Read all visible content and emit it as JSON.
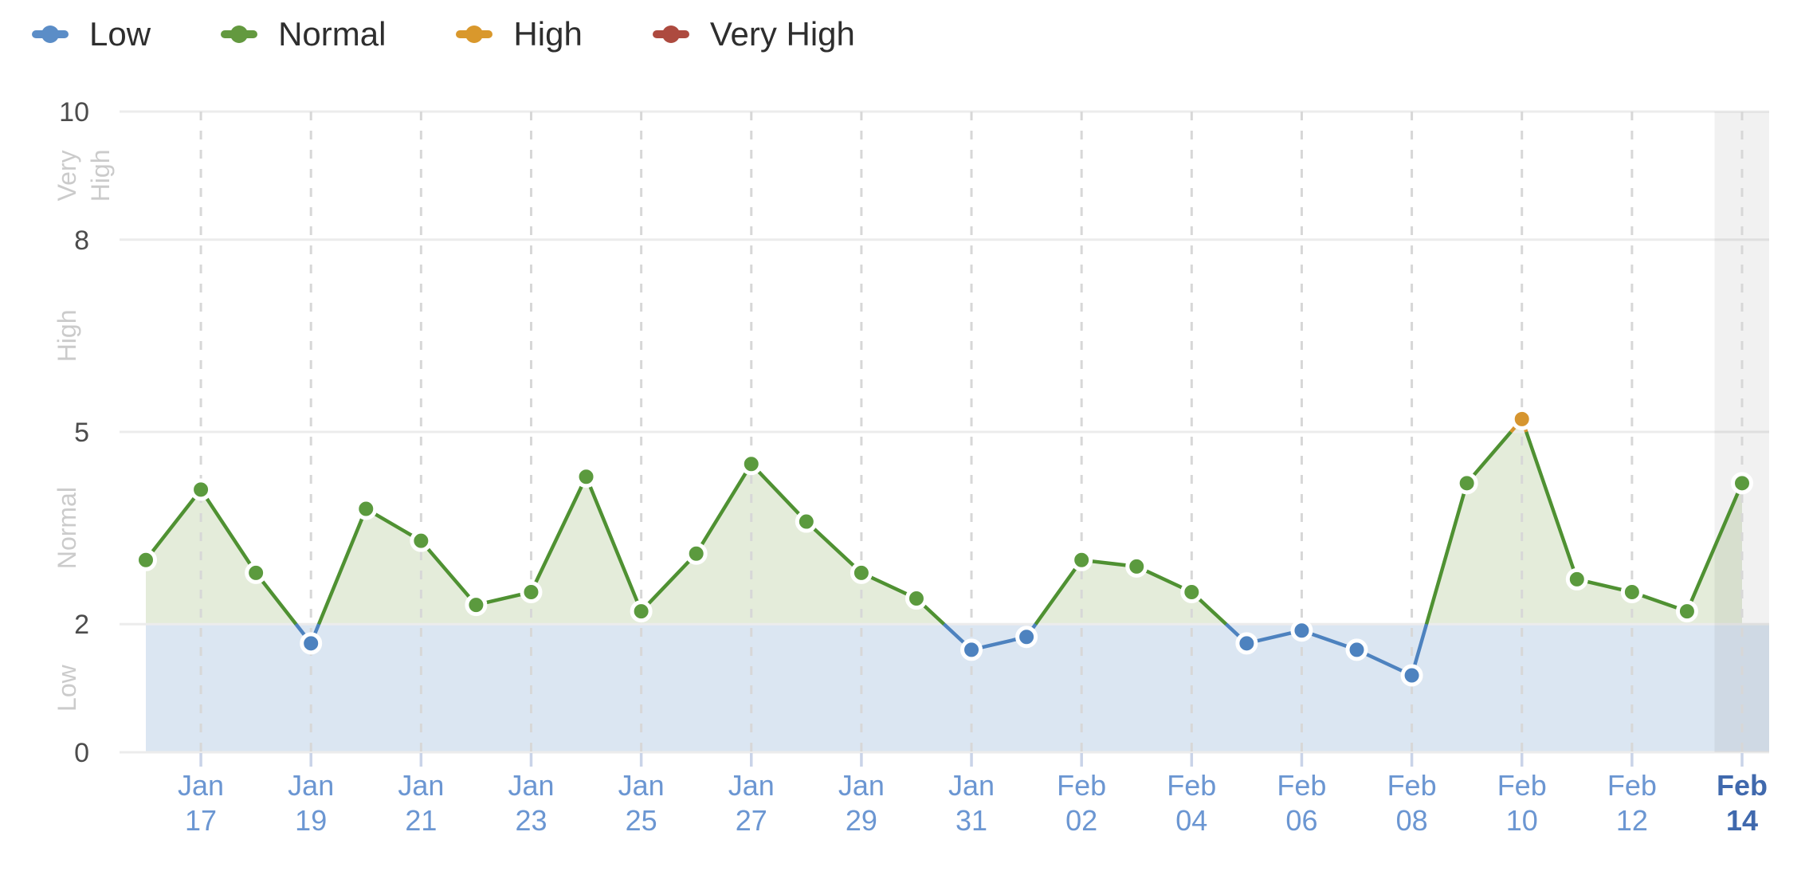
{
  "legend": {
    "items": [
      {
        "label": "Low",
        "color": "#5b8dc7"
      },
      {
        "label": "Normal",
        "color": "#63993f"
      },
      {
        "label": "High",
        "color": "#d9982c"
      },
      {
        "label": "Very High",
        "color": "#ad4a3f"
      }
    ]
  },
  "chart_data": {
    "type": "line",
    "title": "",
    "xlabel": "",
    "ylabel": "",
    "x": [
      "Jan 16",
      "Jan 17",
      "Jan 18",
      "Jan 19",
      "Jan 20",
      "Jan 21",
      "Jan 22",
      "Jan 23",
      "Jan 24",
      "Jan 25",
      "Jan 26",
      "Jan 27",
      "Jan 28",
      "Jan 29",
      "Jan 30",
      "Jan 31",
      "Feb 01",
      "Feb 02",
      "Feb 03",
      "Feb 04",
      "Feb 05",
      "Feb 06",
      "Feb 07",
      "Feb 08",
      "Feb 09",
      "Feb 10",
      "Feb 11",
      "Feb 12",
      "Feb 13",
      "Feb 14"
    ],
    "values": [
      3.0,
      4.1,
      2.8,
      1.7,
      3.8,
      3.3,
      2.3,
      2.5,
      4.3,
      2.2,
      3.1,
      4.5,
      3.6,
      2.8,
      2.4,
      1.6,
      1.8,
      3.0,
      2.9,
      2.5,
      1.7,
      1.9,
      1.6,
      1.2,
      4.2,
      5.2,
      2.7,
      2.5,
      2.2,
      4.2
    ],
    "ylim": [
      0,
      10
    ],
    "yticks": [
      0,
      2,
      5,
      8,
      10
    ],
    "zones": [
      {
        "label": "Low",
        "min": 0,
        "max": 2,
        "color": "#4d82bf",
        "line_color": "#4d82bf"
      },
      {
        "label": "Normal",
        "min": 2,
        "max": 5,
        "color": "#5b9a3e",
        "line_color": "#4f9132"
      },
      {
        "label": "High",
        "min": 5,
        "max": 8,
        "color": "#d6952f",
        "line_color": "#d6952f"
      },
      {
        "label": "Very High",
        "min": 8,
        "max": 10,
        "color": "#ad4a3f",
        "line_color": "#ad4a3f"
      }
    ],
    "xticks": [
      {
        "month": "Jan",
        "day": "17",
        "current": false
      },
      {
        "month": "Jan",
        "day": "19",
        "current": false
      },
      {
        "month": "Jan",
        "day": "21",
        "current": false
      },
      {
        "month": "Jan",
        "day": "23",
        "current": false
      },
      {
        "month": "Jan",
        "day": "25",
        "current": false
      },
      {
        "month": "Jan",
        "day": "27",
        "current": false
      },
      {
        "month": "Jan",
        "day": "29",
        "current": false
      },
      {
        "month": "Jan",
        "day": "31",
        "current": false
      },
      {
        "month": "Feb",
        "day": "02",
        "current": false
      },
      {
        "month": "Feb",
        "day": "04",
        "current": false
      },
      {
        "month": "Feb",
        "day": "06",
        "current": false
      },
      {
        "month": "Feb",
        "day": "08",
        "current": false
      },
      {
        "month": "Feb",
        "day": "10",
        "current": false
      },
      {
        "month": "Feb",
        "day": "12",
        "current": false
      },
      {
        "month": "Feb",
        "day": "14",
        "current": true
      }
    ],
    "grid": {
      "h_on": true,
      "v_on": true,
      "v_dashed": true
    },
    "legend_position": "top-left"
  },
  "colors": {
    "low_zone_band": "#dbe6f2",
    "area_fill": "#e4ecda",
    "current_day_band": "rgba(0,0,0,0.055)",
    "h_gridline": "#ececec",
    "v_gridline": "#d7d7d7",
    "y_tick_label": "#4c4c4c",
    "zone_label": "#cbcbcb",
    "x_tick_label": "#6b96d2",
    "x_tick_label_current": "#4069ad",
    "x_tick_mark": "#c9d3e8",
    "point_ring": "#ffffff"
  }
}
